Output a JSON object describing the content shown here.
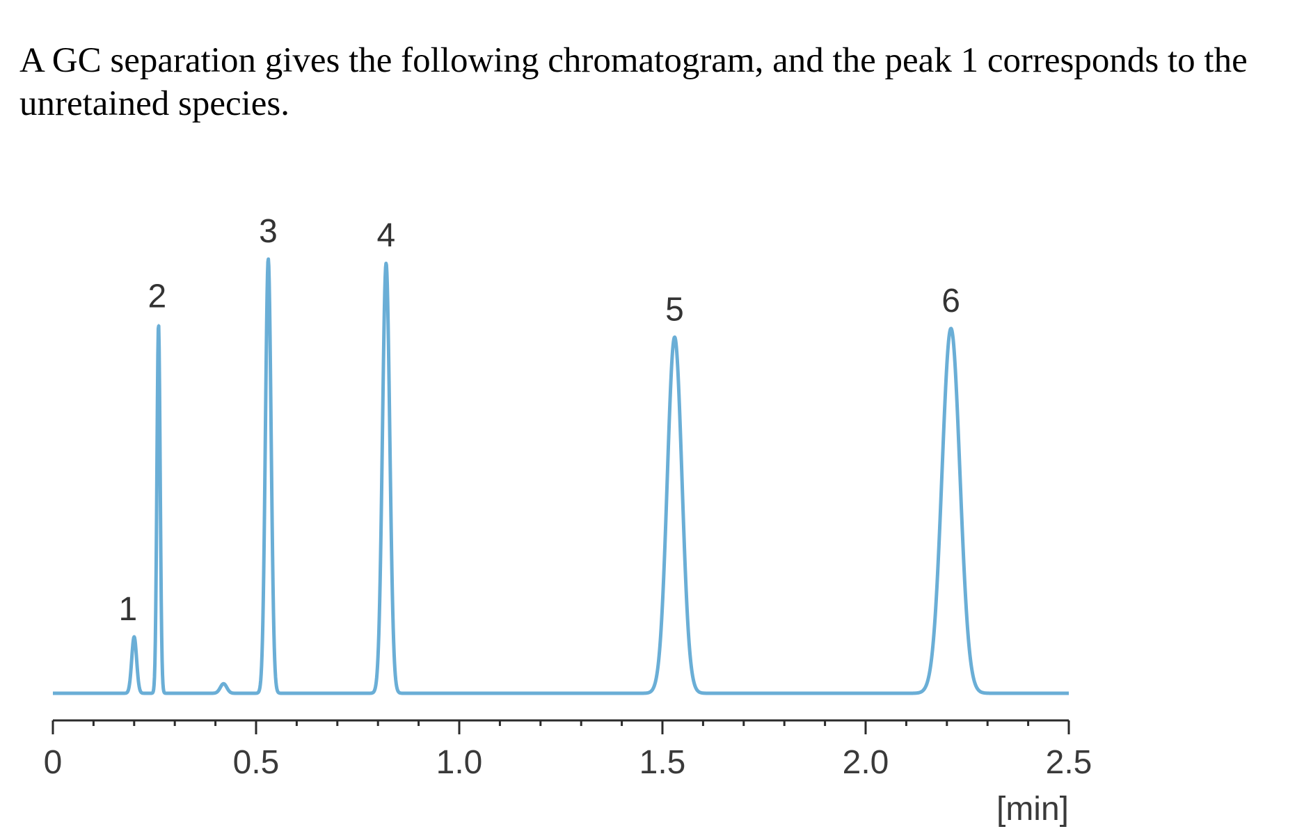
{
  "question": {
    "line1": "A GC separation gives the following chromatogram, and the peak 1 corresponds to the",
    "line2": "unretained species."
  },
  "colors": {
    "trace": "#6aaed6",
    "axis": "#2b2b2b",
    "text": "#000000"
  },
  "chart_data": {
    "type": "line",
    "title": "",
    "xlabel": "[min]",
    "ylabel": "",
    "xlim": [
      0,
      2.5
    ],
    "x_ticks": [
      {
        "value": 0,
        "label": "0"
      },
      {
        "value": 0.5,
        "label": "0.5"
      },
      {
        "value": 1.0,
        "label": "1.0"
      },
      {
        "value": 1.5,
        "label": "1.5"
      },
      {
        "value": 2.0,
        "label": "2.0"
      },
      {
        "value": 2.5,
        "label": "2.5"
      }
    ],
    "minor_tick_step": 0.1,
    "grid": false,
    "legend": "none",
    "trace_range": [
      0.0,
      2.5
    ],
    "ylim": [
      0,
      1.0
    ],
    "baseline": 0.0,
    "peaks": [
      {
        "label": "1",
        "t": 0.2,
        "height": 0.13,
        "width": 0.006
      },
      {
        "label": "2",
        "t": 0.26,
        "height": 0.85,
        "width": 0.004
      },
      {
        "label": "",
        "t": 0.42,
        "height": 0.022,
        "width": 0.008
      },
      {
        "label": "3",
        "t": 0.53,
        "height": 1.0,
        "width": 0.007
      },
      {
        "label": "4",
        "t": 0.82,
        "height": 0.99,
        "width": 0.009
      },
      {
        "label": "5",
        "t": 1.53,
        "height": 0.82,
        "width": 0.018
      },
      {
        "label": "6",
        "t": 2.21,
        "height": 0.84,
        "width": 0.022
      }
    ]
  }
}
